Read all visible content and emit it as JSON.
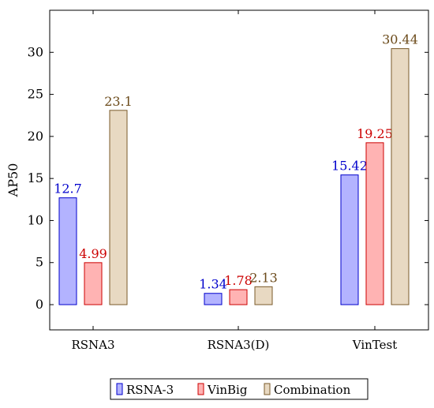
{
  "chart_data": {
    "type": "bar",
    "ylabel": "AP50",
    "xlabel": "",
    "title": "",
    "categories": [
      "RSNA3",
      "RSNA3(D)",
      "VinTest"
    ],
    "ylim": [
      -3,
      35
    ],
    "yticks": [
      0,
      5,
      10,
      15,
      20,
      25,
      30
    ],
    "grid": false,
    "legend_position": "bottom",
    "series": [
      {
        "name": "RSNA-3",
        "values": [
          12.7,
          1.34,
          15.42
        ],
        "labels": [
          "12.7",
          "1.34",
          "15.42"
        ],
        "fill": "#b3b3ff",
        "stroke": "#0000cc",
        "label_color": "#0000cc"
      },
      {
        "name": "VinBig",
        "values": [
          4.99,
          1.78,
          19.25
        ],
        "labels": [
          "4.99",
          "1.78",
          "19.25"
        ],
        "fill": "#ffb3b3",
        "stroke": "#cc0000",
        "label_color": "#cc0000"
      },
      {
        "name": "Combination",
        "values": [
          23.1,
          2.13,
          30.44
        ],
        "labels": [
          "23.1",
          "2.13",
          "30.44"
        ],
        "fill": "#e8d9c2",
        "stroke": "#7a5a2a",
        "label_color": "#6b4a1a"
      }
    ]
  }
}
